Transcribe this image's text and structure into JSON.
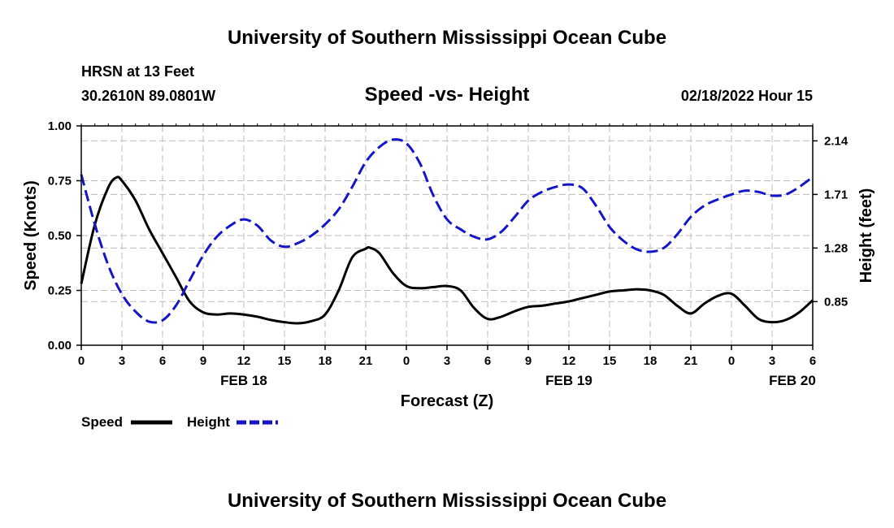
{
  "header": {
    "title": "University of Southern Mississippi Ocean Cube",
    "station": "HRSN at 13 Feet",
    "coords": "30.2610N  89.0801W",
    "subtitle": "Speed -vs- Height",
    "datetime": "02/18/2022 Hour 15"
  },
  "footer": {
    "title": "University of Southern Mississippi Ocean Cube"
  },
  "chart_data": {
    "type": "line",
    "title": "Speed -vs- Height",
    "xlabel": "Forecast (Z)",
    "ylabel": "Speed (Knots)",
    "y2label": "Height (feet)",
    "ylim": [
      0,
      1.0
    ],
    "y2lim": [
      0.5,
      2.26
    ],
    "yticks": [
      0.0,
      0.25,
      0.5,
      0.75,
      1.0
    ],
    "yticklabels": [
      "0.00",
      "0.25",
      "0.50",
      "0.75",
      "1.00"
    ],
    "y2ticks": [
      0.85,
      1.28,
      1.71,
      2.14
    ],
    "y2ticklabels": [
      "0.85",
      "1.28",
      "1.71",
      "2.14"
    ],
    "x_hours": [
      0,
      3,
      6,
      9,
      12,
      15,
      18,
      21,
      24,
      27,
      30,
      33,
      36,
      39,
      42,
      45,
      48,
      51,
      54
    ],
    "xticklabels": [
      "0",
      "3",
      "6",
      "9",
      "12",
      "15",
      "18",
      "21",
      "0",
      "3",
      "6",
      "9",
      "12",
      "15",
      "18",
      "21",
      "0",
      "3",
      "6"
    ],
    "date_labels": [
      {
        "hour": 12,
        "label": "FEB 18"
      },
      {
        "hour": 36,
        "label": "FEB 19"
      },
      {
        "hour": 52.5,
        "label": "FEB 20"
      }
    ],
    "grid": true,
    "series": [
      {
        "name": "Speed",
        "axis": "left",
        "color": "#000000",
        "style": "solid",
        "x": [
          0,
          1,
          2,
          2.6,
          3,
          4,
          5,
          6,
          7,
          8,
          9,
          10,
          11,
          12,
          13,
          14,
          15,
          16,
          17,
          18,
          19,
          20,
          21,
          21.3,
          22,
          23,
          24,
          25,
          26,
          27,
          28,
          29,
          30,
          31,
          32,
          33,
          34,
          35,
          36,
          37,
          38,
          39,
          40,
          41,
          42,
          43,
          44,
          45,
          46,
          47,
          48,
          49,
          50,
          51,
          52,
          53,
          54
        ],
        "values": [
          0.28,
          0.55,
          0.72,
          0.765,
          0.75,
          0.66,
          0.53,
          0.42,
          0.31,
          0.2,
          0.15,
          0.14,
          0.145,
          0.14,
          0.13,
          0.115,
          0.105,
          0.1,
          0.11,
          0.14,
          0.25,
          0.4,
          0.44,
          0.445,
          0.42,
          0.33,
          0.27,
          0.26,
          0.265,
          0.27,
          0.25,
          0.17,
          0.12,
          0.13,
          0.155,
          0.175,
          0.18,
          0.19,
          0.2,
          0.215,
          0.23,
          0.245,
          0.25,
          0.255,
          0.25,
          0.23,
          0.18,
          0.145,
          0.19,
          0.225,
          0.235,
          0.18,
          0.12,
          0.105,
          0.115,
          0.15,
          0.205
        ]
      },
      {
        "name": "Height",
        "axis": "right",
        "color": "#1515c8",
        "style": "dashed",
        "x": [
          0,
          1,
          2,
          3,
          4,
          5,
          6,
          7,
          8,
          9,
          10,
          11,
          12,
          13,
          14,
          15,
          16,
          17,
          18,
          19,
          20,
          21,
          22,
          23,
          24,
          25,
          26,
          27,
          28,
          29,
          30,
          31,
          32,
          33,
          34,
          35,
          36,
          37,
          38,
          39,
          40,
          41,
          42,
          43,
          44,
          45,
          46,
          47,
          48,
          49,
          50,
          51,
          52,
          53,
          54
        ],
        "values": [
          1.87,
          1.47,
          1.14,
          0.91,
          0.77,
          0.69,
          0.7,
          0.82,
          1.02,
          1.22,
          1.37,
          1.46,
          1.51,
          1.46,
          1.34,
          1.29,
          1.32,
          1.38,
          1.47,
          1.59,
          1.77,
          1.97,
          2.09,
          2.15,
          2.12,
          1.96,
          1.7,
          1.51,
          1.43,
          1.37,
          1.35,
          1.41,
          1.53,
          1.66,
          1.73,
          1.77,
          1.79,
          1.76,
          1.62,
          1.45,
          1.34,
          1.27,
          1.25,
          1.28,
          1.39,
          1.53,
          1.62,
          1.67,
          1.71,
          1.74,
          1.73,
          1.7,
          1.71,
          1.77,
          1.85
        ]
      }
    ],
    "legend": [
      {
        "label": "Speed",
        "color": "#000000",
        "style": "solid"
      },
      {
        "label": "Height",
        "color": "#1515c8",
        "style": "dashed"
      }
    ]
  }
}
